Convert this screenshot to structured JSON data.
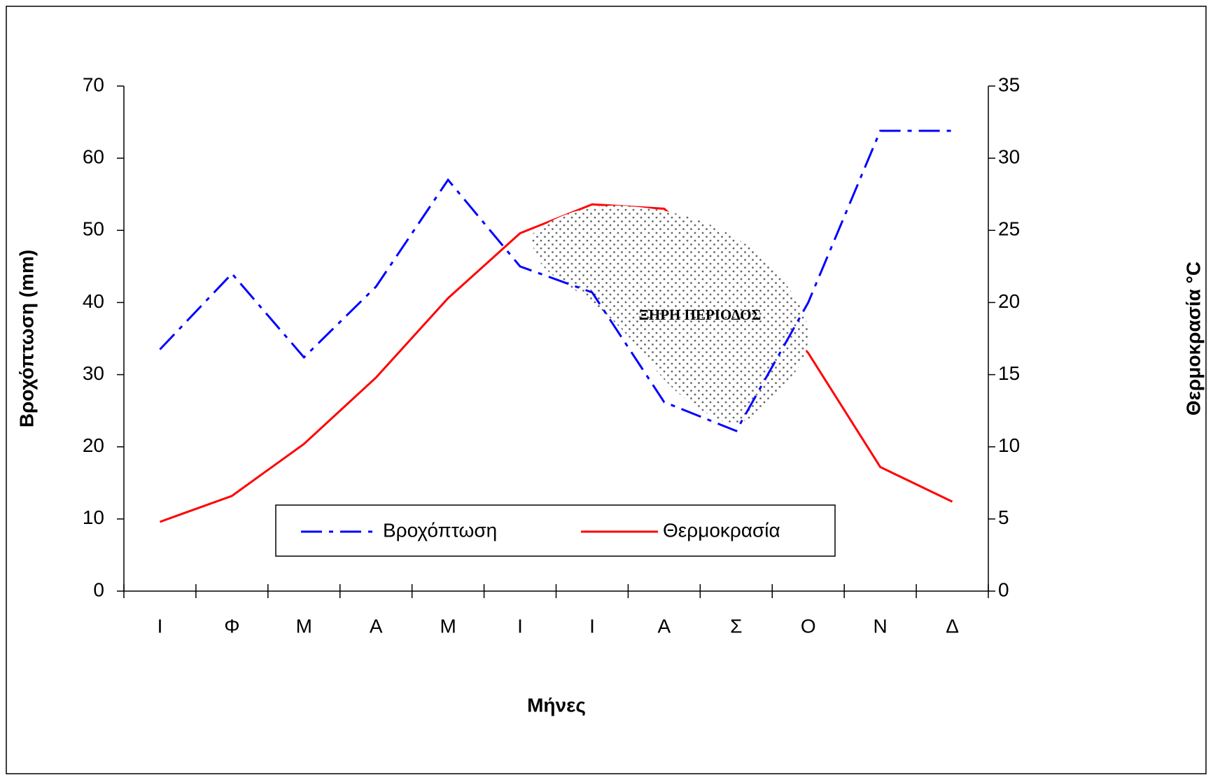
{
  "chart_data": {
    "type": "line",
    "xlabel": "Μήνες",
    "ylabel": "Βροχόπτωση (mm)",
    "y2label": "Θερμοκρασία °C",
    "annotation": "ΞΗΡΗ ΠΕΡΙΟΔΟΣ",
    "categories": [
      "Ι",
      "Φ",
      "Μ",
      "Α",
      "Μ",
      "Ι",
      "Ι",
      "Α",
      "Σ",
      "Ο",
      "Ν",
      "Δ"
    ],
    "series": [
      {
        "name": "Βροχόπτωση",
        "color": "#0000ff",
        "dash": "dash-dot",
        "values": [
          33.5,
          44,
          32.4,
          42.2,
          57,
          45,
          41.4,
          26.2,
          22.2,
          40,
          63.8,
          63.8
        ]
      },
      {
        "name": "Θερμοκρασία",
        "color": "#ff0000",
        "axis": "y2",
        "values": [
          4.8,
          6.6,
          10.2,
          14.8,
          20.3,
          24.8,
          26.8,
          26.5,
          22,
          16.5,
          8.6,
          6.2
        ]
      }
    ],
    "ylim": [
      0,
      70
    ],
    "yticks": [
      0,
      10,
      20,
      30,
      40,
      50,
      60,
      70
    ],
    "y2lim": [
      0,
      35
    ],
    "y2ticks": [
      0,
      5,
      10,
      15,
      20,
      25,
      30,
      35
    ],
    "legend": "bottom"
  }
}
